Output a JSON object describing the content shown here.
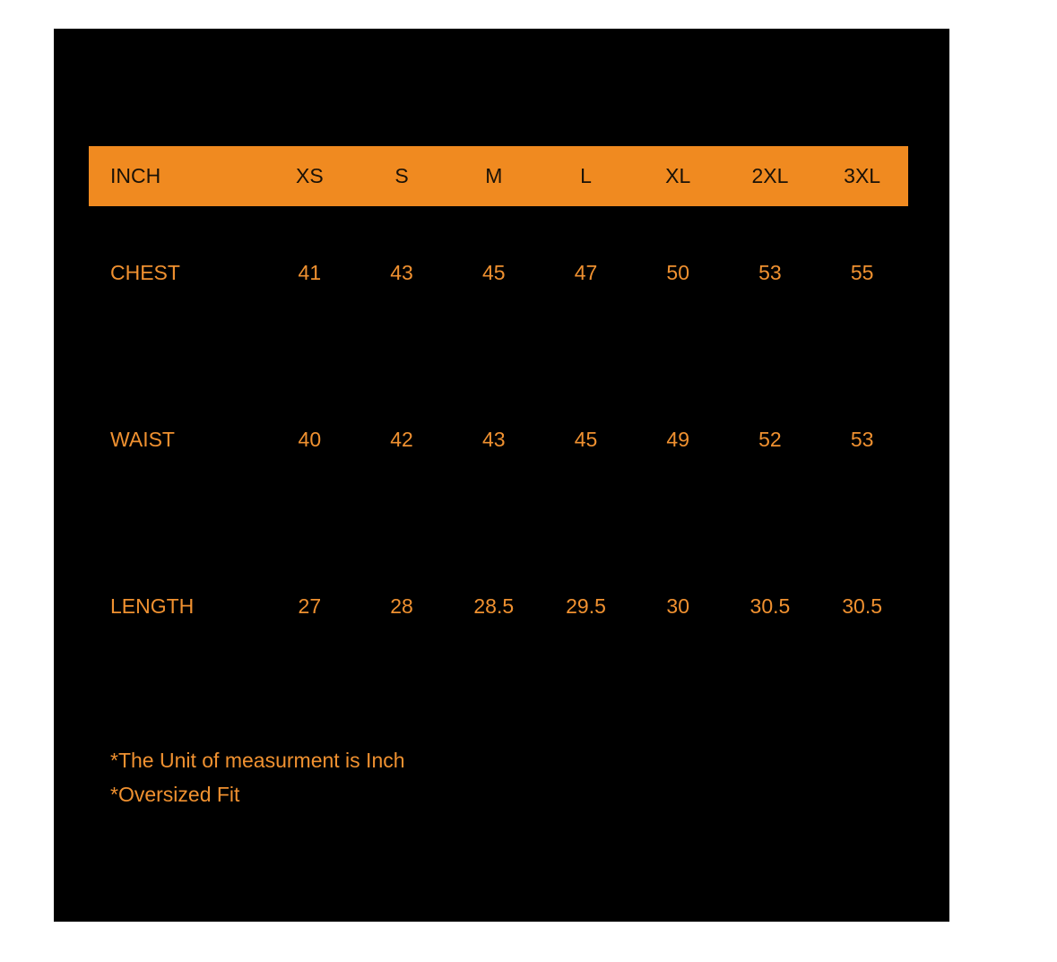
{
  "theme": {
    "page_background": "#ffffff",
    "panel_background": "#000000",
    "accent_orange": "#F08A20",
    "text_orange": "#F09130",
    "header_text_color": "#1a1208"
  },
  "chart_data": {
    "type": "table",
    "title": "",
    "unit_header": "INCH",
    "categories": [
      "XS",
      "S",
      "M",
      "L",
      "XL",
      "2XL",
      "3XL"
    ],
    "series": [
      {
        "name": "CHEST",
        "values": [
          41,
          43,
          45,
          47,
          50,
          53,
          55
        ]
      },
      {
        "name": "WAIST",
        "values": [
          40,
          42,
          43,
          45,
          49,
          52,
          53
        ]
      },
      {
        "name": "LENGTH",
        "values": [
          27,
          28,
          28.5,
          29.5,
          30,
          30.5,
          30.5
        ]
      }
    ],
    "layout_hints": {
      "header_background": "#F08A20",
      "body_background": "#000000",
      "grid": "off"
    }
  },
  "table": {
    "unit_header": "INCH",
    "size_headers": [
      "XS",
      "S",
      "M",
      "L",
      "XL",
      "2XL",
      "3XL"
    ],
    "rows": [
      {
        "label": "CHEST",
        "values": [
          "41",
          "43",
          "45",
          "47",
          "50",
          "53",
          "55"
        ]
      },
      {
        "label": "WAIST",
        "values": [
          "40",
          "42",
          "43",
          "45",
          "49",
          "52",
          "53"
        ]
      },
      {
        "label": "LENGTH",
        "values": [
          "27",
          "28",
          "28.5",
          "29.5",
          "30",
          "30.5",
          "30.5"
        ]
      }
    ]
  },
  "notes": {
    "line1": "*The Unit of measurment is Inch",
    "line2": "*Oversized Fit"
  }
}
